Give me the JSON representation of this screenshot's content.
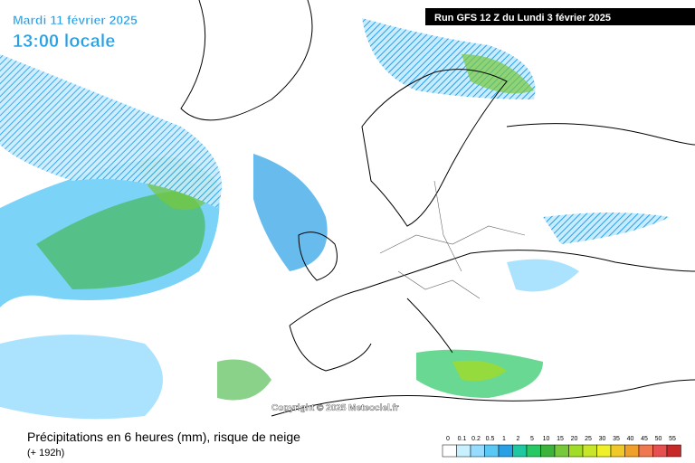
{
  "header": {
    "date": "Mardi 11 février 2025",
    "time": "13:00 locale",
    "run": "Run GFS 12 Z du Lundi 3 février 2025"
  },
  "copyright": "Copyright © 2025 Meteociel.fr",
  "footer": {
    "title": "Précipitations en 6 heures (mm), risque de neige",
    "lead": "(+ 192h)"
  },
  "legend": {
    "ticks": [
      0,
      0.1,
      0.2,
      0.5,
      1,
      2,
      5,
      10,
      15,
      20,
      25,
      30,
      35,
      40,
      45,
      50,
      55
    ],
    "colors": [
      "#ffffff",
      "#c8f0ff",
      "#96dcff",
      "#5ac8f5",
      "#28a0e6",
      "#1ec8a0",
      "#28c864",
      "#3cb43c",
      "#78c83c",
      "#a0dc28",
      "#c8e628",
      "#f0f028",
      "#f0c828",
      "#f0a028",
      "#f07850",
      "#e65050",
      "#c82828"
    ]
  }
}
